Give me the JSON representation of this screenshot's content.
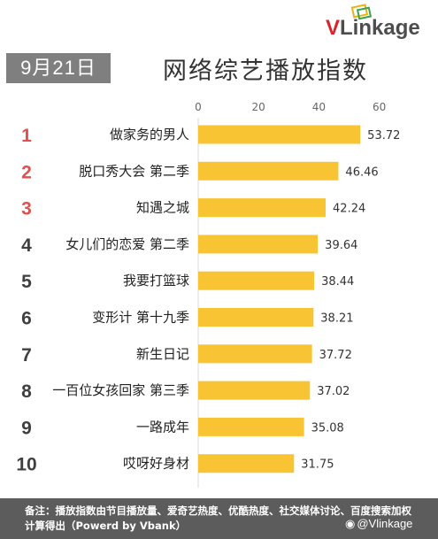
{
  "header": {
    "date": "9月21日",
    "title": "网络综艺播放指数",
    "brand": {
      "v": "V",
      "rest": "Linkage"
    }
  },
  "colors": {
    "bar": "#f9c433",
    "rank_top": "#e0504e",
    "rank_other": "#404040",
    "date_badge": "#7f7f7f",
    "footer": "#5c5c5c"
  },
  "chart_data": {
    "type": "bar",
    "orientation": "horizontal",
    "title": "网络综艺播放指数",
    "xlim": [
      0,
      60
    ],
    "ticks": [
      "0",
      "20",
      "40",
      "60"
    ],
    "ranks": [
      "1",
      "2",
      "3",
      "4",
      "5",
      "6",
      "7",
      "8",
      "9",
      "10"
    ],
    "categories": [
      "做家务的男人",
      "脱口秀大会 第二季",
      "知遇之城",
      "女儿们的恋爱 第二季",
      "我要打篮球",
      "变形计 第十九季",
      "新生日记",
      "一百位女孩回家 第三季",
      "一路成年",
      "哎呀好身材"
    ],
    "values": [
      53.72,
      46.46,
      42.24,
      39.64,
      38.44,
      38.21,
      37.72,
      37.02,
      35.08,
      31.75
    ],
    "value_labels": [
      "53.72",
      "46.46",
      "42.24",
      "39.64",
      "38.44",
      "38.21",
      "37.72",
      "37.02",
      "35.08",
      "31.75"
    ],
    "grid": false,
    "legend": "none"
  },
  "footer": {
    "note": "备注：播放指数由节目播放量、爱奇艺热度、优酷热度、社交媒体讨论、百度搜索加权计算得出（Powerd by Vbank）",
    "watermark": "@Vlinkage"
  }
}
